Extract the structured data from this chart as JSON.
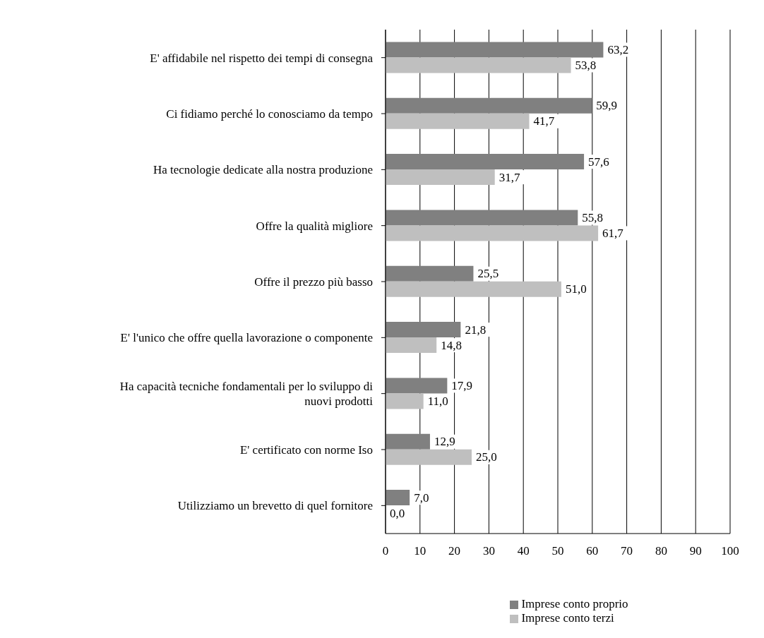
{
  "chart_data": {
    "type": "bar",
    "orientation": "horizontal",
    "categories": [
      "E' affidabile nel rispetto dei tempi di consegna",
      "Ci fidiamo perché lo conosciamo da tempo",
      "Ha tecnologie dedicate alla nostra produzione",
      "Offre la qualità migliore",
      "Offre il prezzo più basso",
      "E' l'unico che offre quella lavorazione o componente",
      "Ha capacità tecniche fondamentali per lo sviluppo di nuovi prodotti",
      "E' certificato con norme Iso",
      "Utilizziamo un brevetto di quel fornitore"
    ],
    "series": [
      {
        "name": "Imprese conto proprio",
        "color": "#808080",
        "values": [
          63.2,
          59.9,
          57.6,
          55.8,
          25.5,
          21.8,
          17.9,
          12.9,
          7.0
        ],
        "value_labels": [
          "63,2",
          "59,9",
          "57,6",
          "55,8",
          "25,5",
          "21,8",
          "17,9",
          "12,9",
          "7,0"
        ]
      },
      {
        "name": "Imprese conto terzi",
        "color": "#bfbfbf",
        "values": [
          53.8,
          41.7,
          31.7,
          61.7,
          51.0,
          14.8,
          11.0,
          25.0,
          0.0
        ],
        "value_labels": [
          "53,8",
          "41,7",
          "31,7",
          "61,7",
          "51,0",
          "14,8",
          "11,0",
          "25,0",
          "0,0"
        ]
      }
    ],
    "xlim": [
      0,
      100
    ],
    "xticks": [
      0,
      10,
      20,
      30,
      40,
      50,
      60,
      70,
      80,
      90,
      100
    ],
    "grid": "x",
    "legend": "bottom"
  }
}
